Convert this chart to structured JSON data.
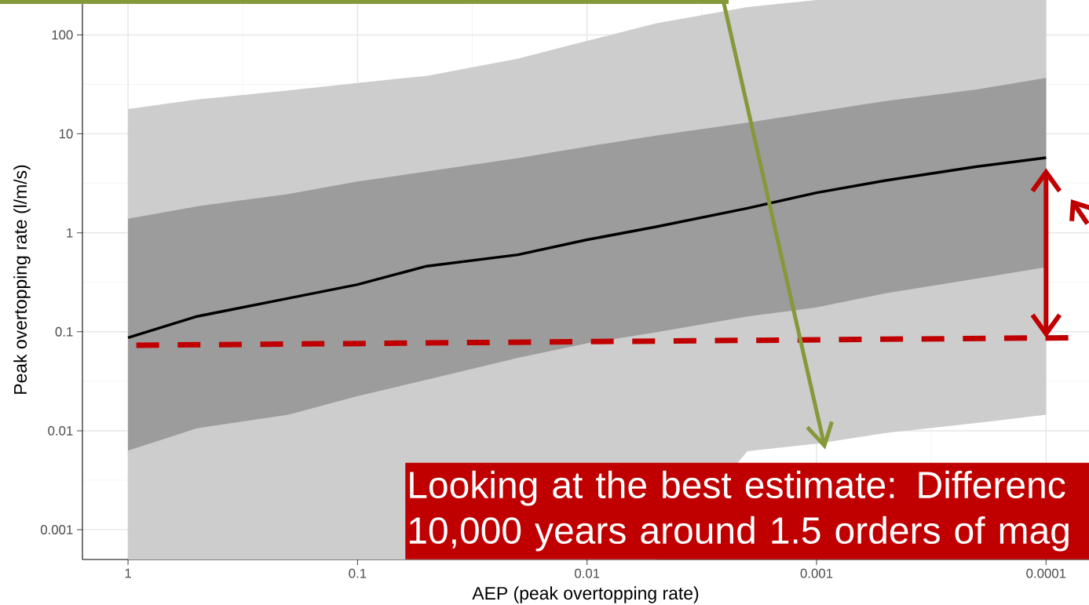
{
  "chart_data": {
    "type": "line",
    "xlabel": "AEP (peak overtopping rate)",
    "ylabel": "Peak overtopping rate (l/m/s)",
    "log": "xy",
    "x": [
      1,
      0.5,
      0.2,
      0.1,
      0.05,
      0.02,
      0.01,
      0.005,
      0.002,
      0.001,
      0.0005,
      0.0002,
      0.0001
    ],
    "xlim": [
      1.58,
      6.5e-05
    ],
    "xticks": [
      1,
      0.1,
      0.01,
      0.001,
      0.0001
    ],
    "ylim": [
      0.0005,
      225
    ],
    "yticks": [
      0.001,
      0.01,
      0.1,
      1,
      10,
      100
    ],
    "grid": true,
    "series": [
      {
        "color": "#cdcdcd",
        "values": [
          null,
          null,
          null,
          null,
          null,
          null,
          null,
          null,
          null,
          null,
          null,
          null,
          null
        ],
        "lower": [
          0.0005,
          0.0005,
          0.0005,
          0.0005,
          0.0005,
          0.0005,
          0.0005,
          0.0005,
          0.0062,
          0.0074,
          0.0095,
          0.012,
          0.0145
        ],
        "upper": [
          17.8,
          22.2,
          27.4,
          32.7,
          38.5,
          57.6,
          87,
          131,
          191,
          225,
          225,
          225,
          225
        ]
      },
      {
        "color": "#9c9c9c",
        "values": [
          null,
          null,
          null,
          null,
          null,
          null,
          null,
          null,
          null,
          null,
          null,
          null,
          null
        ],
        "lower": [
          0.0063,
          0.0106,
          0.0145,
          0.0224,
          0.0327,
          0.0545,
          0.0766,
          0.0986,
          0.143,
          0.176,
          0.245,
          0.345,
          0.45
        ],
        "upper": [
          1.39,
          1.85,
          2.47,
          3.3,
          4.16,
          5.69,
          7.45,
          9.6,
          13.0,
          16.7,
          21.4,
          28.1,
          36.8
        ]
      },
      {
        "type": "line",
        "color": "#000000",
        "values": [
          0.087,
          0.143,
          0.218,
          0.3,
          0.46,
          0.6,
          0.85,
          1.15,
          1.77,
          2.54,
          3.38,
          4.67,
          5.73
        ]
      },
      {
        "type": "line",
        "color": "#c00000",
        "line_style": "dashed",
        "x": [
          0.92,
          8e-05
        ],
        "values": [
          0.073,
          0.087
        ]
      }
    ],
    "annotations": [
      "Looking at the best estimate:  Differenc",
      "10,000 years around 1.5 orders of mag"
    ]
  }
}
